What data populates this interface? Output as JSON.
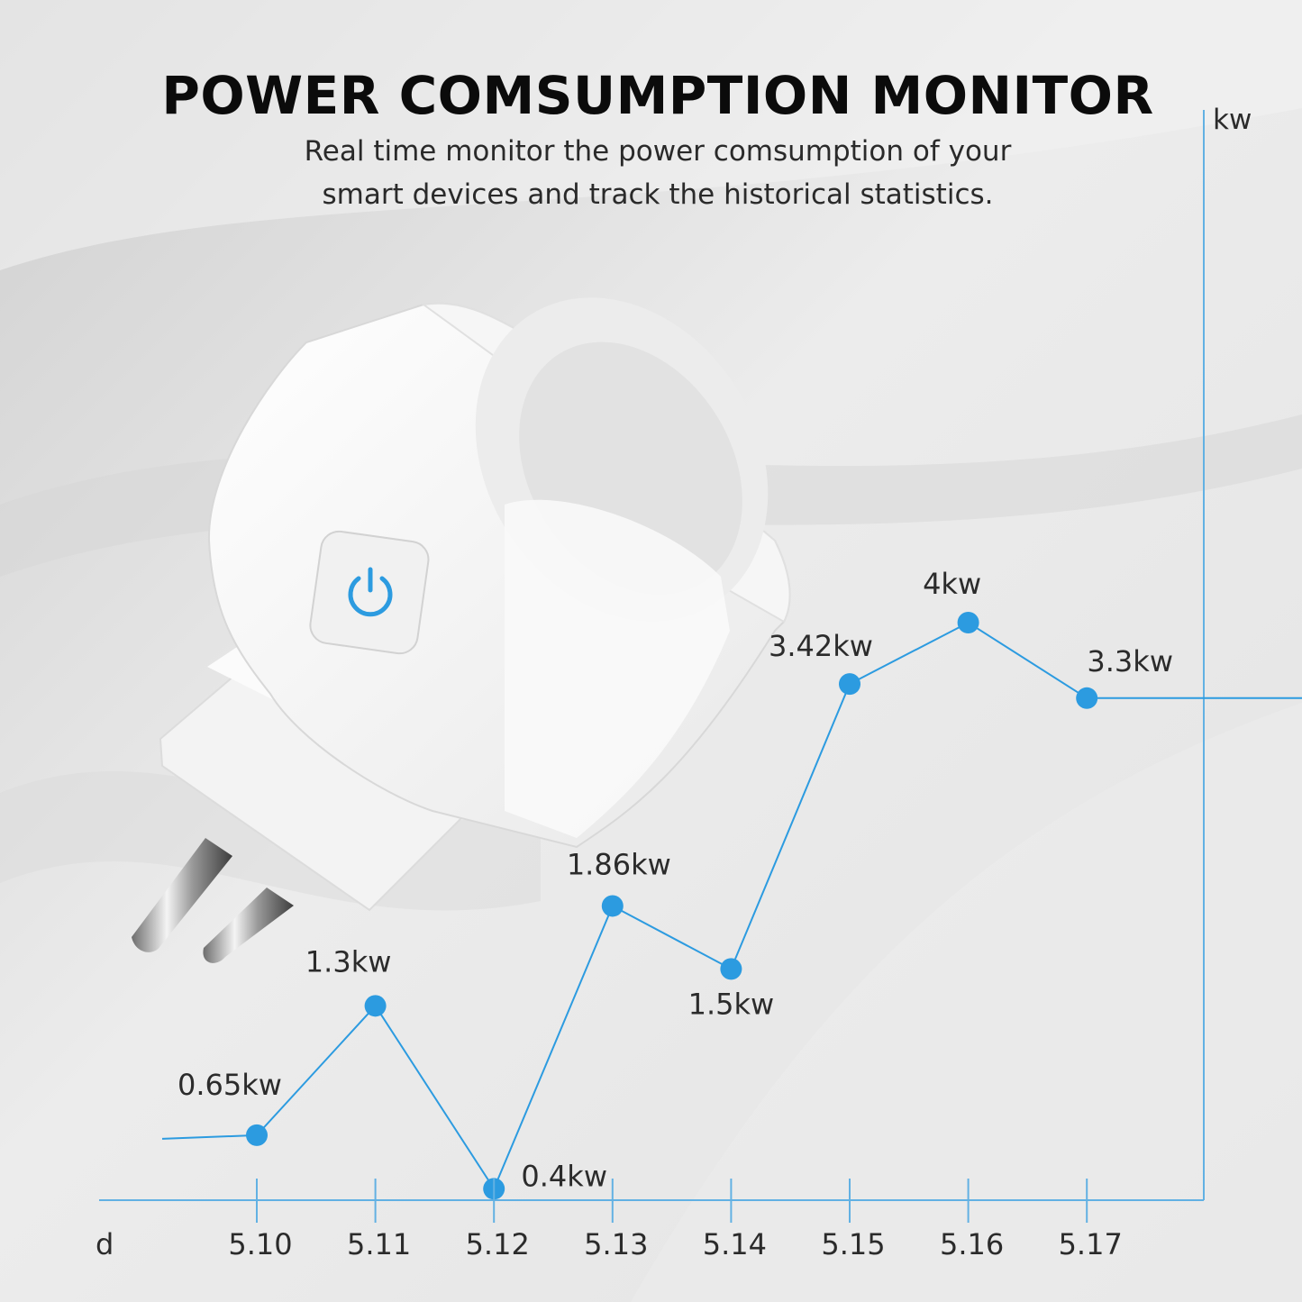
{
  "header": {
    "title": "POWER COMSUMPTION MONITOR",
    "subtitle_line1": "Real time monitor the power comsumption of your",
    "subtitle_line2": "smart devices and track the historical statistics."
  },
  "product": {
    "name": "smart-plug",
    "button_icon": "power-icon",
    "accent_color": "#2c9be0"
  },
  "chart_data": {
    "type": "line",
    "x_label": "d",
    "y_label": "kw",
    "categories": [
      "5.10",
      "5.11",
      "5.12",
      "5.13",
      "5.14",
      "5.15",
      "5.16",
      "5.17"
    ],
    "values": [
      0.65,
      1.3,
      0.4,
      1.86,
      1.5,
      3.42,
      4,
      3.3
    ],
    "point_labels": [
      "0.65kw",
      "1.3kw",
      "0.4kw",
      "1.86kw",
      "1.5kw",
      "3.42kw",
      "4kw",
      "3.3kw"
    ],
    "line_color": "#2c9be0",
    "axis_color": "#62b1e3",
    "grid": false,
    "legend": "none"
  }
}
